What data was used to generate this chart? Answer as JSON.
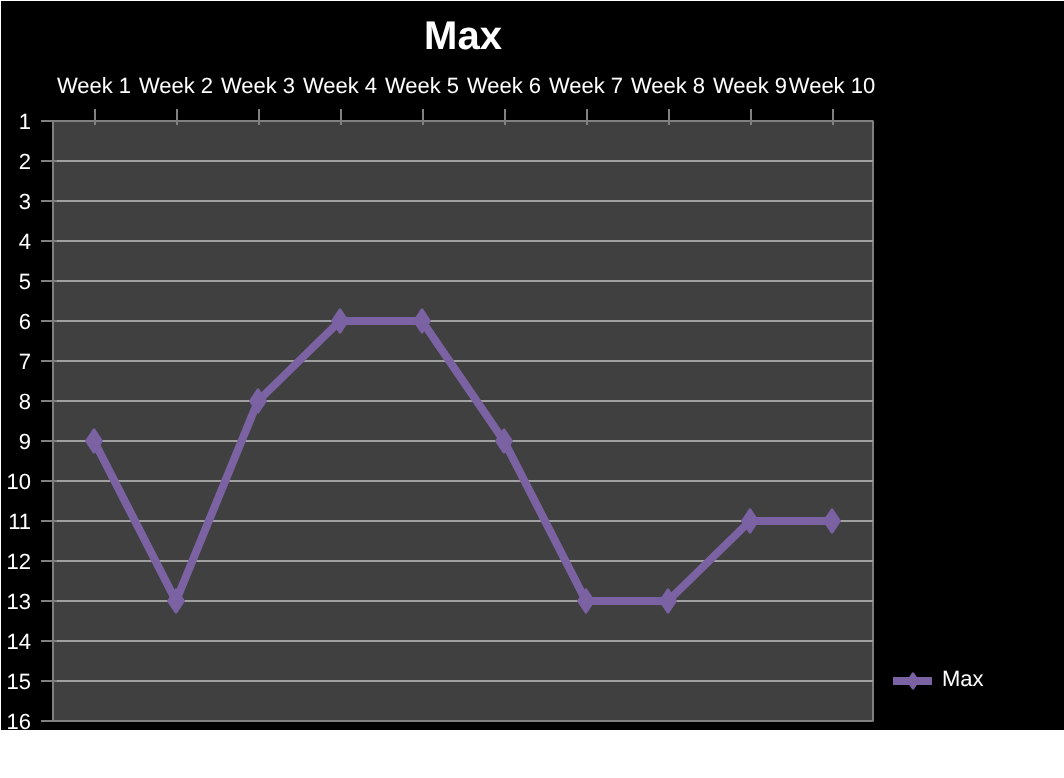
{
  "chart_data": {
    "type": "line",
    "title": "Max",
    "categories": [
      "Week 1",
      "Week 2",
      "Week 3",
      "Week 4",
      "Week 5",
      "Week 6",
      "Week 7",
      "Week 8",
      "Week 9",
      "Week 10"
    ],
    "series": [
      {
        "name": "Max",
        "color": "#7b62a3",
        "values": [
          9,
          13,
          8,
          6,
          6,
          9,
          13,
          13,
          11,
          11
        ]
      }
    ],
    "ylim": [
      16,
      1
    ],
    "yticks": [
      1,
      2,
      3,
      4,
      5,
      6,
      7,
      8,
      9,
      10,
      11,
      12,
      13,
      14,
      15,
      16
    ],
    "grid": "y",
    "legend": "right",
    "marker": "diamond",
    "line_style": "solid"
  }
}
